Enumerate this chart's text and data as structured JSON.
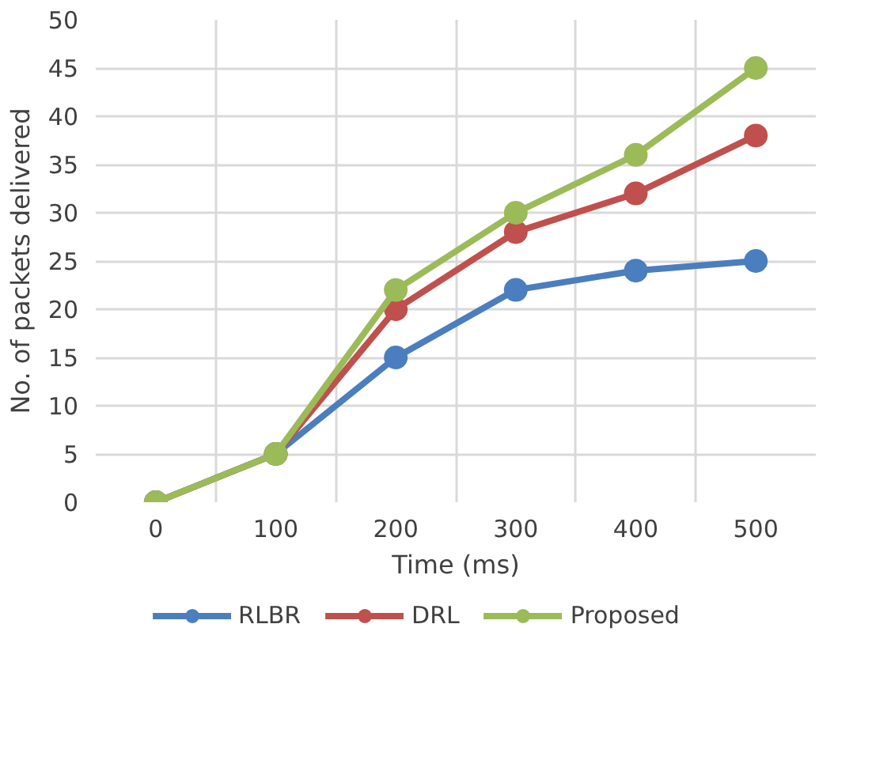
{
  "chart_data": {
    "type": "line",
    "xlabel": "Time (ms)",
    "ylabel": "No. of packets delivered",
    "categories": [
      "0",
      "100",
      "200",
      "300",
      "400",
      "500"
    ],
    "ylim": [
      0,
      50
    ],
    "yticks": [
      0,
      5,
      10,
      15,
      20,
      25,
      30,
      35,
      40,
      45,
      50
    ],
    "series": [
      {
        "name": "RLBR",
        "color": "#4a7ebf",
        "values": [
          0,
          5,
          15,
          22,
          24,
          25
        ]
      },
      {
        "name": "DRL",
        "color": "#c0504d",
        "values": [
          0,
          5,
          20,
          28,
          32,
          38
        ]
      },
      {
        "name": "Proposed",
        "color": "#9bbb59",
        "values": [
          0,
          5,
          22,
          30,
          36,
          45
        ]
      }
    ],
    "grid": true,
    "legend": "bottom",
    "marker": "circle",
    "line_style": "solid"
  }
}
